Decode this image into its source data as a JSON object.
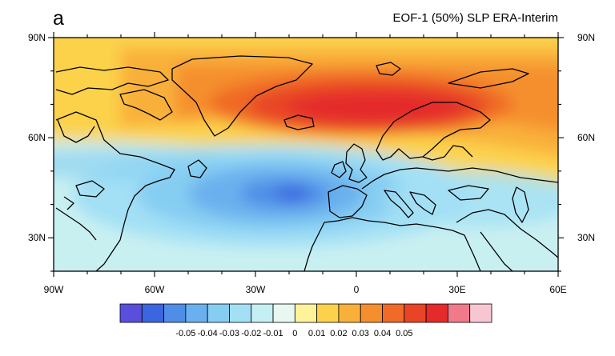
{
  "panel_letter": "a",
  "title": "EOF-1 (50%) SLP ERA-Interim",
  "lat_labels_left": [
    "90N",
    "60N",
    "30N"
  ],
  "lat_labels_right": [
    "90N",
    "60N",
    "30N"
  ],
  "lon_labels": [
    "90W",
    "60W",
    "30W",
    "0",
    "30E",
    "60E"
  ],
  "colorbar": {
    "colors": [
      "#5a4fdc",
      "#3b66e0",
      "#4f8ee6",
      "#6ab0ee",
      "#86cdf2",
      "#a3e0f5",
      "#c4eff3",
      "#e6f8f0",
      "#fff39a",
      "#fcd24c",
      "#f9b03a",
      "#f58f2e",
      "#f06a28",
      "#e84426",
      "#e42a2a",
      "#f07a8a",
      "#f8c6d2"
    ],
    "tick_labels": [
      "-0.05",
      "-0.04",
      "-0.03",
      "-0.02",
      "-0.01",
      "0",
      "0.01",
      "0.02",
      "0.03",
      "0.04",
      "0.05"
    ]
  },
  "map_extent": {
    "lon": [
      -90,
      60
    ],
    "lat": [
      20,
      90
    ]
  }
}
